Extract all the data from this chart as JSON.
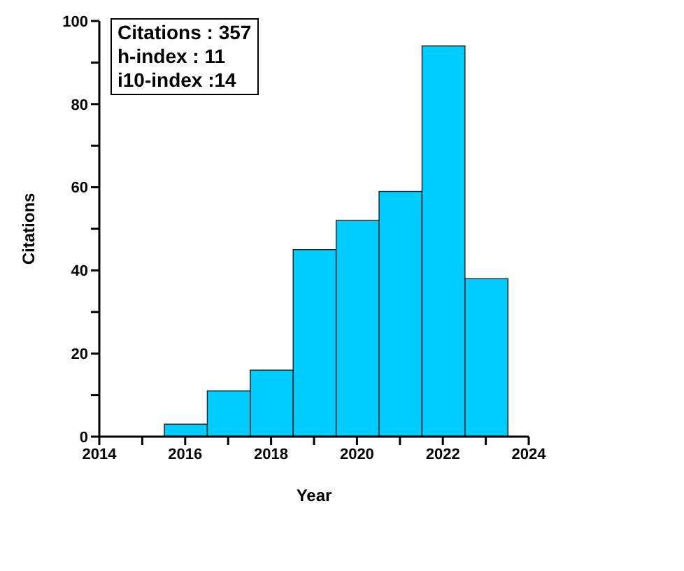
{
  "chart_data": {
    "type": "histogram",
    "xlabel": "Year",
    "ylabel": "Citations",
    "bins": [
      2015.5,
      2016.5,
      2017.5,
      2018.5,
      2019.5,
      2020.5,
      2021.5,
      2022.5,
      2023.5
    ],
    "values": [
      3,
      11,
      16,
      45,
      52,
      59,
      94,
      38
    ],
    "color": "#00ccff",
    "xlim": [
      2014,
      2024
    ],
    "xticks": [
      2014,
      {
        "value": 2015,
        "label": null
      },
      2016,
      {
        "value": 2017,
        "label": null
      },
      2018,
      {
        "value": 2019,
        "label": null
      },
      2020,
      {
        "value": 2021,
        "label": null
      },
      2022,
      {
        "value": 2023,
        "label": null
      },
      2024
    ],
    "ylim": [
      0,
      100
    ],
    "yticks": [
      0,
      {
        "value": 10,
        "label": null
      },
      20,
      {
        "value": 30,
        "label": null
      },
      40,
      {
        "value": 50,
        "label": null
      },
      60,
      {
        "value": 70,
        "label": null
      },
      80,
      {
        "value": 90,
        "label": null
      },
      100
    ],
    "grid": false,
    "annotations": [
      "Citations : 357",
      "h-index : 11",
      "i10-index :14"
    ]
  }
}
